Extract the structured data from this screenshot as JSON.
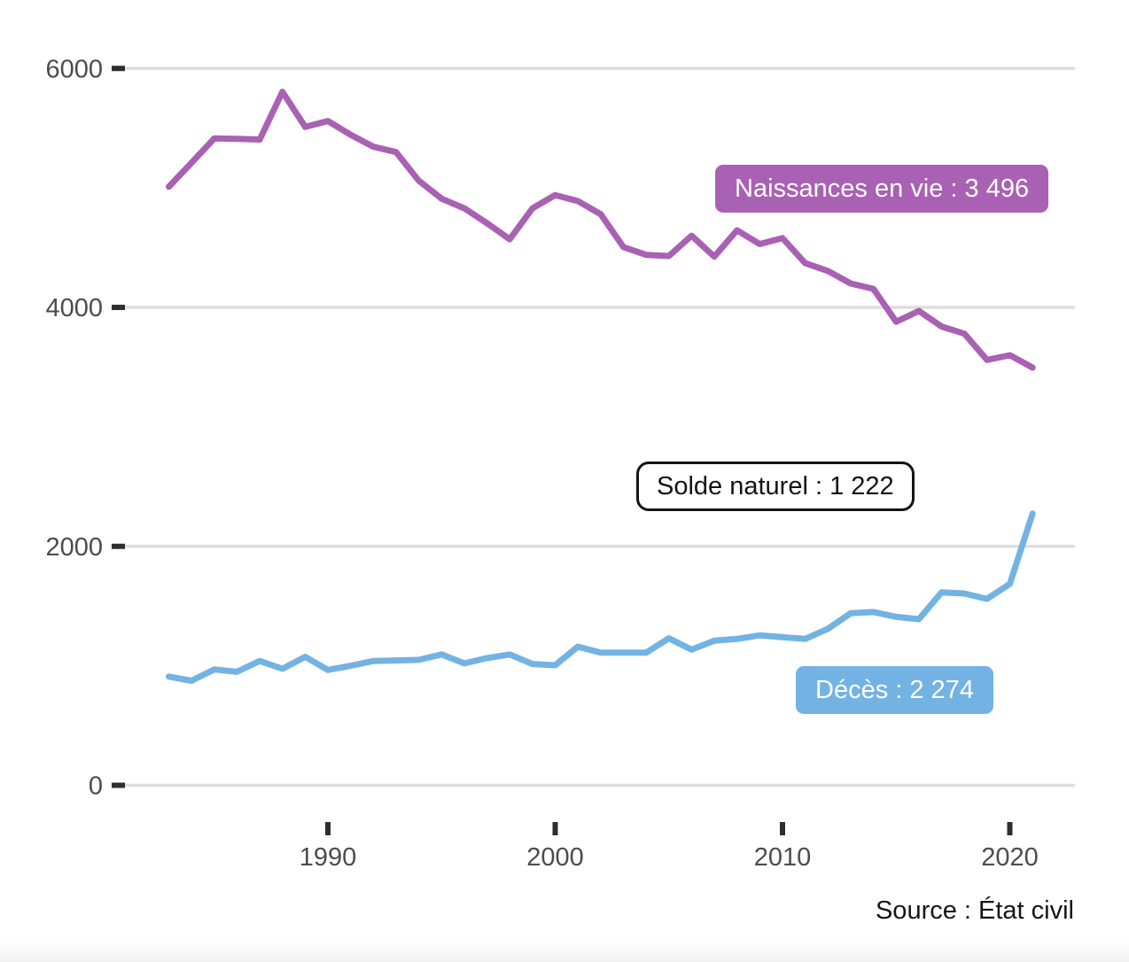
{
  "chart_data": {
    "type": "line",
    "title": "",
    "xlabel": "",
    "ylabel": "",
    "grid": "horizontal",
    "legend_position": "inline-badges",
    "xlim": [
      1982.5,
      2022
    ],
    "ylim": [
      0,
      6200
    ],
    "x_ticks": [
      {
        "value": 1990,
        "label": "1990"
      },
      {
        "value": 2000,
        "label": "2000"
      },
      {
        "value": 2010,
        "label": "2010"
      },
      {
        "value": 2020,
        "label": "2020"
      }
    ],
    "y_ticks": [
      {
        "value": 0,
        "label": "0"
      },
      {
        "value": 2000,
        "label": "2000"
      },
      {
        "value": 4000,
        "label": "4000"
      },
      {
        "value": 6000,
        "label": "6000"
      }
    ],
    "x": [
      1983,
      1984,
      1985,
      1986,
      1987,
      1988,
      1989,
      1990,
      1991,
      1992,
      1993,
      1994,
      1995,
      1996,
      1997,
      1998,
      1999,
      2000,
      2001,
      2002,
      2003,
      2004,
      2005,
      2006,
      2007,
      2008,
      2009,
      2010,
      2011,
      2012,
      2013,
      2014,
      2015,
      2016,
      2017,
      2018,
      2019,
      2020,
      2021
    ],
    "series": [
      {
        "id": "naissances",
        "name": "Naissances en vie",
        "badge_label": "Naissances en vie : 3 496",
        "latest_value": 3496,
        "color": "#a961b3",
        "values": [
          5010,
          5210,
          5415,
          5410,
          5405,
          5805,
          5510,
          5560,
          5445,
          5345,
          5300,
          5060,
          4910,
          4830,
          4705,
          4570,
          4830,
          4940,
          4890,
          4780,
          4505,
          4440,
          4430,
          4600,
          4425,
          4645,
          4530,
          4580,
          4370,
          4305,
          4200,
          4155,
          3880,
          3970,
          3840,
          3780,
          3560,
          3600,
          3496
        ]
      },
      {
        "id": "deces",
        "name": "Décès",
        "badge_label": "Décès : 2 274",
        "latest_value": 2274,
        "color": "#73b3e3",
        "values": [
          910,
          875,
          970,
          950,
          1040,
          975,
          1075,
          965,
          1000,
          1040,
          1045,
          1050,
          1095,
          1020,
          1065,
          1095,
          1015,
          1005,
          1160,
          1110,
          1110,
          1110,
          1230,
          1135,
          1210,
          1225,
          1255,
          1240,
          1225,
          1310,
          1440,
          1450,
          1410,
          1390,
          1615,
          1605,
          1560,
          1685,
          2274
        ]
      }
    ],
    "annotation": {
      "id": "solde-naturel",
      "name": "Solde naturel",
      "badge_label": "Solde naturel : 1 222",
      "latest_value": 1222
    }
  },
  "source": {
    "text": "Source : État civil"
  },
  "colors": {
    "background": "#ffffff",
    "gridline": "#dedede",
    "tick": "#2e2e2e",
    "axis_text": "#4c4c4c",
    "source_text": "#161616",
    "naissances_line": "#a961b3",
    "deces_line": "#73b3e3",
    "annotation_border": "#141414"
  }
}
